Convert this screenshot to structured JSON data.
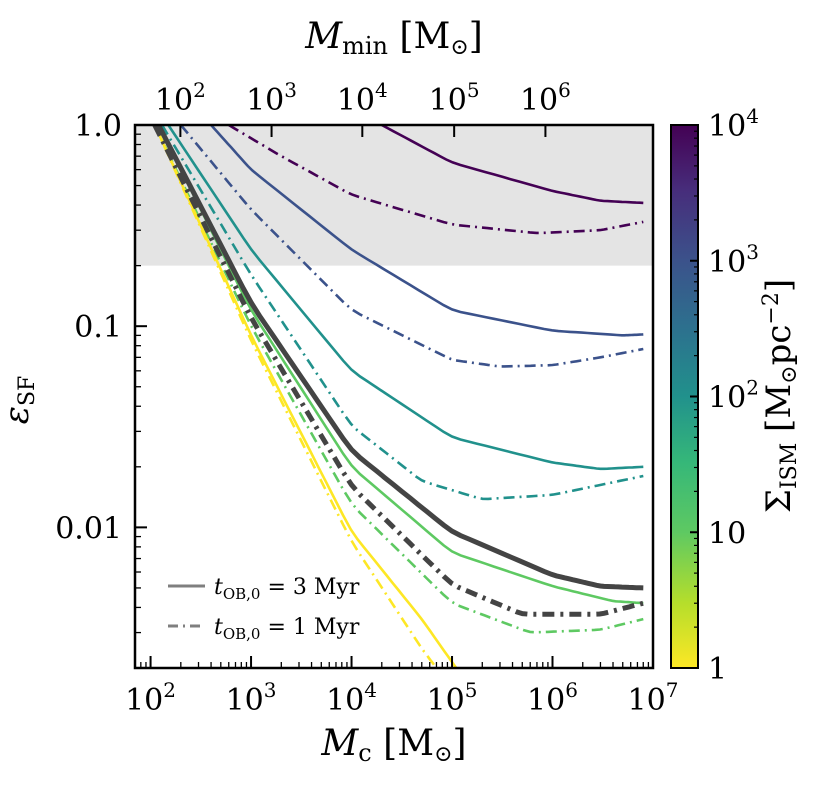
{
  "chart_data": {
    "type": "line",
    "xscale": "log",
    "yscale": "log",
    "xlim": [
      70,
      10000000
    ],
    "ylim": [
      0.002,
      1.0
    ],
    "xlabel": "M_c [M_⊙]",
    "ylabel": "ε_SF",
    "top_axis_label": "M_min [M_⊙]",
    "x_tick_labels": [
      "10^2",
      "10^3",
      "10^4",
      "10^5",
      "10^6",
      "10^7"
    ],
    "x_tick_values": [
      100,
      1000,
      10000,
      100000,
      1000000,
      10000000
    ],
    "y_tick_labels": [
      "0.01",
      "0.1",
      "1.0"
    ],
    "y_tick_values": [
      0.01,
      0.1,
      1.0
    ],
    "top_tick_labels": [
      "10^2",
      "10^3",
      "10^4",
      "10^5",
      "10^6"
    ],
    "top_tick_values": [
      100,
      1000,
      10000,
      100000,
      1000000
    ],
    "top_axis_map_mc": [
      198,
      1600,
      12800,
      105000,
      850000
    ],
    "shaded_region": {
      "ymin": 0.2,
      "ymax": 1.0,
      "color": "#e4e4e4"
    },
    "colorbar": {
      "label": "Σ_ISM [M_⊙pc^-2]",
      "scale": "log",
      "range": [
        1,
        10000
      ],
      "tick_labels": [
        "1",
        "10",
        "10^2",
        "10^3",
        "10^4"
      ],
      "tick_values": [
        1,
        10,
        100,
        1000,
        10000
      ],
      "colormap": [
        "#fde725",
        "#5ec962",
        "#21918c",
        "#3b528b",
        "#440154"
      ]
    },
    "legend": {
      "position": "lower-left",
      "entries": [
        {
          "label": "t_OB,0 = 3 Myr",
          "style": "solid"
        },
        {
          "label": "t_OB,0 = 1 Myr",
          "style": "dashdot"
        }
      ]
    },
    "series": [
      {
        "name": "Σ=1e4, 3 Myr",
        "style": "solid",
        "color": "#440154",
        "x": [
          20000,
          100000,
          1000000,
          3000000,
          8000000
        ],
        "y": [
          1.0,
          0.65,
          0.47,
          0.42,
          0.41
        ]
      },
      {
        "name": "Σ=1e4, 1 Myr",
        "style": "dashdot",
        "color": "#440154",
        "x": [
          600,
          2000,
          10000,
          100000,
          700000,
          3000000,
          8000000
        ],
        "y": [
          1.0,
          0.7,
          0.45,
          0.32,
          0.29,
          0.3,
          0.33
        ]
      },
      {
        "name": "Σ=1e3, 3 Myr",
        "style": "solid",
        "color": "#3b528b",
        "x": [
          400,
          1000,
          10000,
          100000,
          1000000,
          5000000,
          8000000
        ],
        "y": [
          1.0,
          0.6,
          0.24,
          0.12,
          0.095,
          0.09,
          0.091
        ]
      },
      {
        "name": "Σ=1e3, 1 Myr",
        "style": "dashdot",
        "color": "#3b528b",
        "x": [
          200,
          1000,
          10000,
          100000,
          300000,
          1000000,
          3000000,
          8000000
        ],
        "y": [
          1.0,
          0.38,
          0.12,
          0.068,
          0.063,
          0.064,
          0.07,
          0.077
        ]
      },
      {
        "name": "Σ=1e2, 3 Myr",
        "style": "solid",
        "color": "#21918c",
        "x": [
          150,
          1000,
          10000,
          100000,
          1000000,
          3000000,
          8000000
        ],
        "y": [
          1.0,
          0.24,
          0.06,
          0.028,
          0.021,
          0.0195,
          0.02
        ]
      },
      {
        "name": "Σ=1e2, 1 Myr",
        "style": "dashdot",
        "color": "#21918c",
        "x": [
          130,
          1000,
          10000,
          50000,
          200000,
          1000000,
          8000000
        ],
        "y": [
          1.0,
          0.18,
          0.032,
          0.017,
          0.0138,
          0.0145,
          0.018
        ]
      },
      {
        "name": "Σ=10, 3 Myr",
        "style": "solid",
        "color": "#5ec962",
        "x": [
          120,
          1000,
          10000,
          100000,
          1000000,
          4000000,
          8000000
        ],
        "y": [
          1.0,
          0.12,
          0.02,
          0.0075,
          0.0051,
          0.0043,
          0.0042
        ]
      },
      {
        "name": "Σ=10, 1 Myr",
        "style": "dashdot",
        "color": "#5ec962",
        "x": [
          110,
          1000,
          10000,
          100000,
          600000,
          3000000,
          8000000
        ],
        "y": [
          1.0,
          0.1,
          0.013,
          0.0042,
          0.003,
          0.0031,
          0.0035
        ]
      },
      {
        "name": "Σ=1, 3 Myr",
        "style": "solid",
        "color": "#fde725",
        "x": [
          110,
          1000,
          10000,
          50000,
          110000
        ],
        "y": [
          1.0,
          0.09,
          0.0095,
          0.0035,
          0.002
        ]
      },
      {
        "name": "Σ=1, 1 Myr",
        "style": "dashdot",
        "color": "#fde725",
        "x": [
          110,
          1000,
          10000,
          50000,
          70000
        ],
        "y": [
          1.0,
          0.085,
          0.0085,
          0.0025,
          0.002
        ]
      },
      {
        "name": "mean, 3 Myr",
        "style": "solid-thick",
        "color": "#444444",
        "x": [
          120,
          1000,
          10000,
          100000,
          1000000,
          3000000,
          8000000
        ],
        "y": [
          1.0,
          0.13,
          0.024,
          0.0095,
          0.0058,
          0.0051,
          0.005
        ]
      },
      {
        "name": "mean, 1 Myr",
        "style": "dashdot-thick",
        "color": "#444444",
        "x": [
          110,
          1000,
          10000,
          100000,
          500000,
          3000000,
          8000000
        ],
        "y": [
          1.0,
          0.11,
          0.016,
          0.0052,
          0.0037,
          0.0037,
          0.0042
        ]
      }
    ]
  }
}
